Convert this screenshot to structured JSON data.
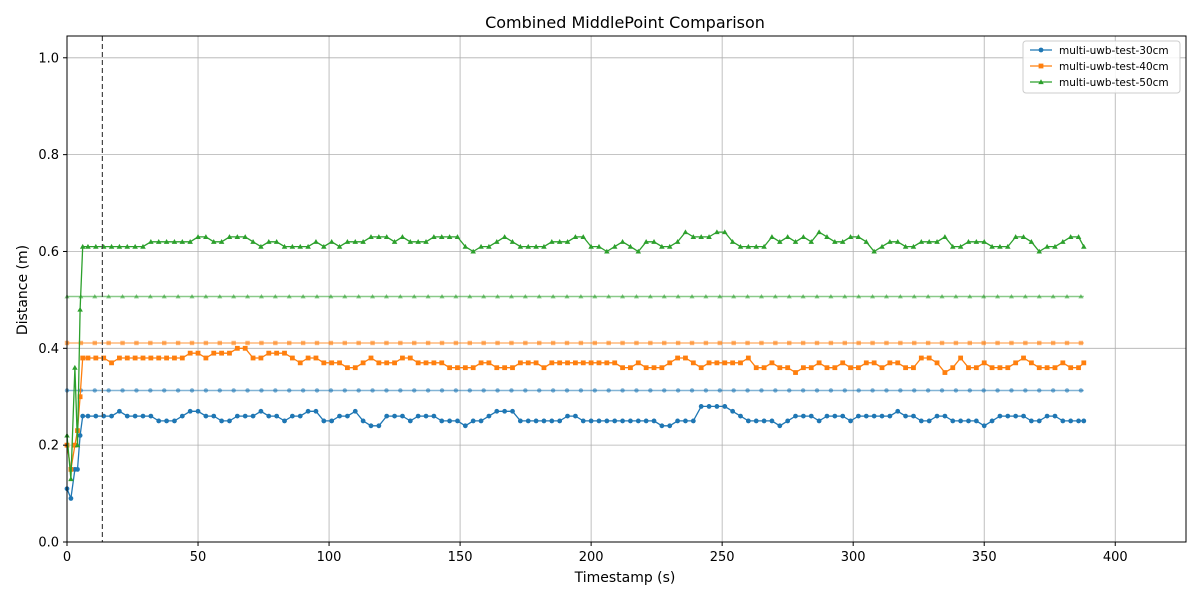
{
  "chart_data": {
    "type": "line",
    "title": "Combined MiddlePoint Comparison",
    "xlabel": "Timestamp (s)",
    "ylabel": "Distance (m)",
    "xlim": [
      0,
      427
    ],
    "ylim": [
      0,
      1.045
    ],
    "xticks": [
      0,
      50,
      100,
      150,
      200,
      250,
      300,
      350,
      400
    ],
    "yticks": [
      0.0,
      0.2,
      0.4,
      0.6,
      0.8,
      1.0
    ],
    "xtick_labels": [
      "0",
      "50",
      "100",
      "150",
      "200",
      "250",
      "300",
      "350",
      "400"
    ],
    "ytick_labels": [
      "0.0",
      "0.2",
      "0.4",
      "0.6",
      "0.8",
      "1.0"
    ],
    "grid": true,
    "legend_position": "top-right",
    "vline_x": 13.5,
    "series": [
      {
        "name": "multi-uwb-test-30cm",
        "color": "#1f77b4",
        "marker": "circle",
        "x": [
          0,
          1.5,
          3,
          4,
          5,
          6,
          8,
          11,
          14,
          17,
          20,
          23,
          26,
          29,
          32,
          35,
          38,
          41,
          44,
          47,
          50,
          53,
          56,
          59,
          62,
          65,
          68,
          71,
          74,
          77,
          80,
          83,
          86,
          89,
          92,
          95,
          98,
          101,
          104,
          107,
          110,
          113,
          116,
          119,
          122,
          125,
          128,
          131,
          134,
          137,
          140,
          143,
          146,
          149,
          152,
          155,
          158,
          161,
          164,
          167,
          170,
          173,
          176,
          179,
          182,
          185,
          188,
          191,
          194,
          197,
          200,
          203,
          206,
          209,
          212,
          215,
          218,
          221,
          224,
          227,
          230,
          233,
          236,
          239,
          242,
          245,
          248,
          251,
          254,
          257,
          260,
          263,
          266,
          269,
          272,
          275,
          278,
          281,
          284,
          287,
          290,
          293,
          296,
          299,
          302,
          305,
          308,
          311,
          314,
          317,
          320,
          323,
          326,
          329,
          332,
          335,
          338,
          341,
          344,
          347,
          350,
          353,
          356,
          359,
          362,
          365,
          368,
          371,
          374,
          377,
          380,
          383,
          386,
          388
        ],
        "values": [
          0.11,
          0.09,
          0.15,
          0.15,
          0.22,
          0.26,
          0.26,
          0.26,
          0.26,
          0.26,
          0.27,
          0.26,
          0.26,
          0.26,
          0.26,
          0.25,
          0.25,
          0.25,
          0.26,
          0.27,
          0.27,
          0.26,
          0.26,
          0.25,
          0.25,
          0.26,
          0.26,
          0.26,
          0.27,
          0.26,
          0.26,
          0.25,
          0.26,
          0.26,
          0.27,
          0.27,
          0.25,
          0.25,
          0.26,
          0.26,
          0.27,
          0.25,
          0.24,
          0.24,
          0.26,
          0.26,
          0.26,
          0.25,
          0.26,
          0.26,
          0.26,
          0.25,
          0.25,
          0.25,
          0.24,
          0.25,
          0.25,
          0.26,
          0.27,
          0.27,
          0.27,
          0.25,
          0.25,
          0.25,
          0.25,
          0.25,
          0.25,
          0.26,
          0.26,
          0.25,
          0.25,
          0.25,
          0.25,
          0.25,
          0.25,
          0.25,
          0.25,
          0.25,
          0.25,
          0.24,
          0.24,
          0.25,
          0.25,
          0.25,
          0.28,
          0.28,
          0.28,
          0.28,
          0.27,
          0.26,
          0.25,
          0.25,
          0.25,
          0.25,
          0.24,
          0.25,
          0.26,
          0.26,
          0.26,
          0.25,
          0.26,
          0.26,
          0.26,
          0.25,
          0.26,
          0.26,
          0.26,
          0.26,
          0.26,
          0.27,
          0.26,
          0.26,
          0.25,
          0.25,
          0.26,
          0.26,
          0.25,
          0.25,
          0.25,
          0.25,
          0.24,
          0.25,
          0.26,
          0.26,
          0.26,
          0.26,
          0.25,
          0.25,
          0.26,
          0.26,
          0.25,
          0.25,
          0.25,
          0.25
        ],
        "ref_value": 0.313
      },
      {
        "name": "multi-uwb-test-40cm",
        "color": "#ff7f0e",
        "marker": "square",
        "x": [
          0,
          1.5,
          3,
          4,
          5,
          6,
          8,
          11,
          14,
          17,
          20,
          23,
          26,
          29,
          32,
          35,
          38,
          41,
          44,
          47,
          50,
          53,
          56,
          59,
          62,
          65,
          68,
          71,
          74,
          77,
          80,
          83,
          86,
          89,
          92,
          95,
          98,
          101,
          104,
          107,
          110,
          113,
          116,
          119,
          122,
          125,
          128,
          131,
          134,
          137,
          140,
          143,
          146,
          149,
          152,
          155,
          158,
          161,
          164,
          167,
          170,
          173,
          176,
          179,
          182,
          185,
          188,
          191,
          194,
          197,
          200,
          203,
          206,
          209,
          212,
          215,
          218,
          221,
          224,
          227,
          230,
          233,
          236,
          239,
          242,
          245,
          248,
          251,
          254,
          257,
          260,
          263,
          266,
          269,
          272,
          275,
          278,
          281,
          284,
          287,
          290,
          293,
          296,
          299,
          302,
          305,
          308,
          311,
          314,
          317,
          320,
          323,
          326,
          329,
          332,
          335,
          338,
          341,
          344,
          347,
          350,
          353,
          356,
          359,
          362,
          365,
          368,
          371,
          374,
          377,
          380,
          383,
          386,
          388
        ],
        "values": [
          0.2,
          0.15,
          0.2,
          0.23,
          0.3,
          0.38,
          0.38,
          0.38,
          0.38,
          0.37,
          0.38,
          0.38,
          0.38,
          0.38,
          0.38,
          0.38,
          0.38,
          0.38,
          0.38,
          0.39,
          0.39,
          0.38,
          0.39,
          0.39,
          0.39,
          0.4,
          0.4,
          0.38,
          0.38,
          0.39,
          0.39,
          0.39,
          0.38,
          0.37,
          0.38,
          0.38,
          0.37,
          0.37,
          0.37,
          0.36,
          0.36,
          0.37,
          0.38,
          0.37,
          0.37,
          0.37,
          0.38,
          0.38,
          0.37,
          0.37,
          0.37,
          0.37,
          0.36,
          0.36,
          0.36,
          0.36,
          0.37,
          0.37,
          0.36,
          0.36,
          0.36,
          0.37,
          0.37,
          0.37,
          0.36,
          0.37,
          0.37,
          0.37,
          0.37,
          0.37,
          0.37,
          0.37,
          0.37,
          0.37,
          0.36,
          0.36,
          0.37,
          0.36,
          0.36,
          0.36,
          0.37,
          0.38,
          0.38,
          0.37,
          0.36,
          0.37,
          0.37,
          0.37,
          0.37,
          0.37,
          0.38,
          0.36,
          0.36,
          0.37,
          0.36,
          0.36,
          0.35,
          0.36,
          0.36,
          0.37,
          0.36,
          0.36,
          0.37,
          0.36,
          0.36,
          0.37,
          0.37,
          0.36,
          0.37,
          0.37,
          0.36,
          0.36,
          0.38,
          0.38,
          0.37,
          0.35,
          0.36,
          0.38,
          0.36,
          0.36,
          0.37,
          0.36,
          0.36,
          0.36,
          0.37,
          0.38,
          0.37,
          0.36,
          0.36,
          0.36,
          0.37,
          0.36,
          0.36,
          0.37
        ],
        "ref_value": 0.411
      },
      {
        "name": "multi-uwb-test-50cm",
        "color": "#2ca02c",
        "marker": "triangle",
        "x": [
          0,
          1.5,
          3,
          4,
          5,
          6,
          8,
          11,
          14,
          17,
          20,
          23,
          26,
          29,
          32,
          35,
          38,
          41,
          44,
          47,
          50,
          53,
          56,
          59,
          62,
          65,
          68,
          71,
          74,
          77,
          80,
          83,
          86,
          89,
          92,
          95,
          98,
          101,
          104,
          107,
          110,
          113,
          116,
          119,
          122,
          125,
          128,
          131,
          134,
          137,
          140,
          143,
          146,
          149,
          152,
          155,
          158,
          161,
          164,
          167,
          170,
          173,
          176,
          179,
          182,
          185,
          188,
          191,
          194,
          197,
          200,
          203,
          206,
          209,
          212,
          215,
          218,
          221,
          224,
          227,
          230,
          233,
          236,
          239,
          242,
          245,
          248,
          251,
          254,
          257,
          260,
          263,
          266,
          269,
          272,
          275,
          278,
          281,
          284,
          287,
          290,
          293,
          296,
          299,
          302,
          305,
          308,
          311,
          314,
          317,
          320,
          323,
          326,
          329,
          332,
          335,
          338,
          341,
          344,
          347,
          350,
          353,
          356,
          359,
          362,
          365,
          368,
          371,
          374,
          377,
          380,
          383,
          386,
          388
        ],
        "values": [
          0.22,
          0.13,
          0.36,
          0.2,
          0.48,
          0.61,
          0.61,
          0.61,
          0.61,
          0.61,
          0.61,
          0.61,
          0.61,
          0.61,
          0.62,
          0.62,
          0.62,
          0.62,
          0.62,
          0.62,
          0.63,
          0.63,
          0.62,
          0.62,
          0.63,
          0.63,
          0.63,
          0.62,
          0.61,
          0.62,
          0.62,
          0.61,
          0.61,
          0.61,
          0.61,
          0.62,
          0.61,
          0.62,
          0.61,
          0.62,
          0.62,
          0.62,
          0.63,
          0.63,
          0.63,
          0.62,
          0.63,
          0.62,
          0.62,
          0.62,
          0.63,
          0.63,
          0.63,
          0.63,
          0.61,
          0.6,
          0.61,
          0.61,
          0.62,
          0.63,
          0.62,
          0.61,
          0.61,
          0.61,
          0.61,
          0.62,
          0.62,
          0.62,
          0.63,
          0.63,
          0.61,
          0.61,
          0.6,
          0.61,
          0.62,
          0.61,
          0.6,
          0.62,
          0.62,
          0.61,
          0.61,
          0.62,
          0.64,
          0.63,
          0.63,
          0.63,
          0.64,
          0.64,
          0.62,
          0.61,
          0.61,
          0.61,
          0.61,
          0.63,
          0.62,
          0.63,
          0.62,
          0.63,
          0.62,
          0.64,
          0.63,
          0.62,
          0.62,
          0.63,
          0.63,
          0.62,
          0.6,
          0.61,
          0.62,
          0.62,
          0.61,
          0.61,
          0.62,
          0.62,
          0.62,
          0.63,
          0.61,
          0.61,
          0.62,
          0.62,
          0.62,
          0.61,
          0.61,
          0.61,
          0.63,
          0.63,
          0.62,
          0.6,
          0.61,
          0.61,
          0.62,
          0.63,
          0.63,
          0.61
        ],
        "ref_value": 0.507
      }
    ]
  }
}
